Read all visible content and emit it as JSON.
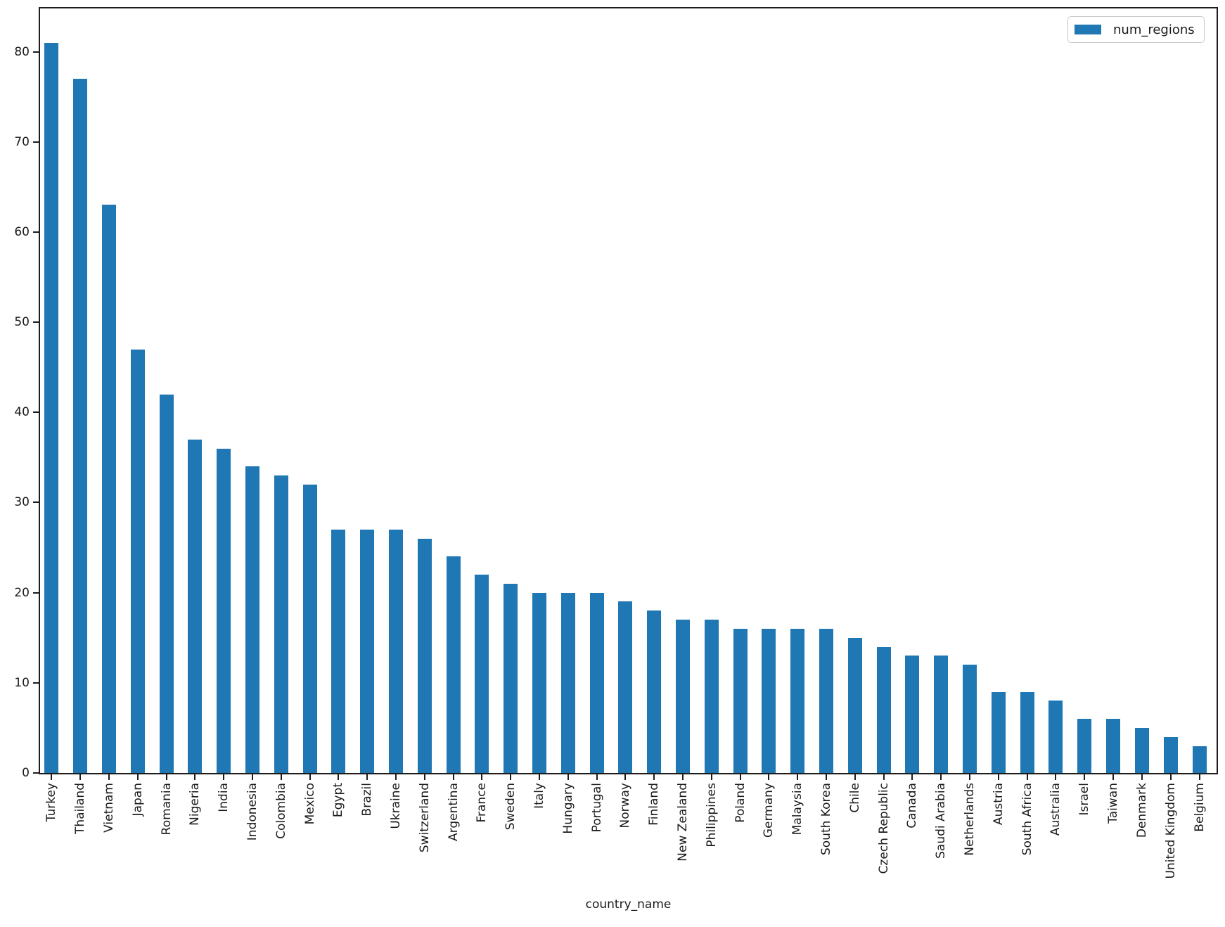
{
  "chart_data": {
    "type": "bar",
    "title": "",
    "xlabel": "country_name",
    "ylabel": "",
    "legend": {
      "labels": [
        "num_regions"
      ],
      "position": "upper right"
    },
    "bar_color": "#1f77b4",
    "grid": false,
    "ylim": [
      0,
      84.8
    ],
    "yticks": [
      0,
      10,
      20,
      30,
      40,
      50,
      60,
      70,
      80
    ],
    "categories": [
      "Turkey",
      "Thailand",
      "Vietnam",
      "Japan",
      "Romania",
      "Nigeria",
      "India",
      "Indonesia",
      "Colombia",
      "Mexico",
      "Egypt",
      "Brazil",
      "Ukraine",
      "Switzerland",
      "Argentina",
      "France",
      "Sweden",
      "Italy",
      "Hungary",
      "Portugal",
      "Norway",
      "Finland",
      "New Zealand",
      "Philippines",
      "Poland",
      "Germany",
      "Malaysia",
      "South Korea",
      "Chile",
      "Czech Republic",
      "Canada",
      "Saudi Arabia",
      "Netherlands",
      "Austria",
      "South Africa",
      "Australia",
      "Israel",
      "Taiwan",
      "Denmark",
      "United Kingdom",
      "Belgium"
    ],
    "values": [
      81,
      77,
      63,
      47,
      42,
      37,
      36,
      34,
      33,
      32,
      27,
      27,
      27,
      26,
      24,
      22,
      21,
      20,
      20,
      20,
      19,
      18,
      17,
      17,
      16,
      16,
      16,
      16,
      15,
      14,
      13,
      13,
      12,
      9,
      9,
      8,
      6,
      6,
      5,
      4,
      3
    ]
  }
}
